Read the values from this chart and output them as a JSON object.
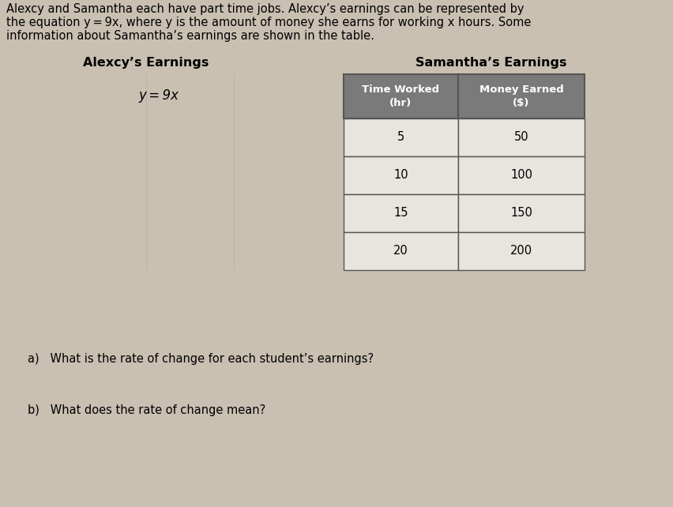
{
  "bg_color": "#c9c0b2",
  "intro_lines": [
    "Alexcy and Samantha each have part time jobs. Alexcy’s earnings can be represented by",
    "the equation y = 9x, where y is the amount of money she earns for working x hours. Some",
    "information about Samantha’s earnings are shown in the table."
  ],
  "alexcy_header": "Alexcy’s Earnings",
  "samantha_header": "Samantha’s Earnings",
  "alexcy_equation": "y = 9x",
  "table_col1_header": "Time Worked\n(hr)",
  "table_col2_header": "Money Earned\n($)",
  "table_data": [
    [
      5,
      50
    ],
    [
      10,
      100
    ],
    [
      15,
      150
    ],
    [
      20,
      200
    ]
  ],
  "question_a": "a)   What is the rate of change for each student’s earnings?",
  "question_b": "b)   What does the rate of change mean?",
  "header_bg": "#7a7a7a",
  "header_text_color": "#ffffff",
  "row_bg": "#e8e4de",
  "table_border_color": "#555555",
  "intro_fontsize": 10.5,
  "section_header_fontsize": 11.5,
  "equation_fontsize": 12,
  "table_header_fontsize": 9.5,
  "table_data_fontsize": 10.5,
  "question_fontsize": 10.5,
  "fig_width": 8.52,
  "fig_height": 6.42,
  "dpi": 100
}
